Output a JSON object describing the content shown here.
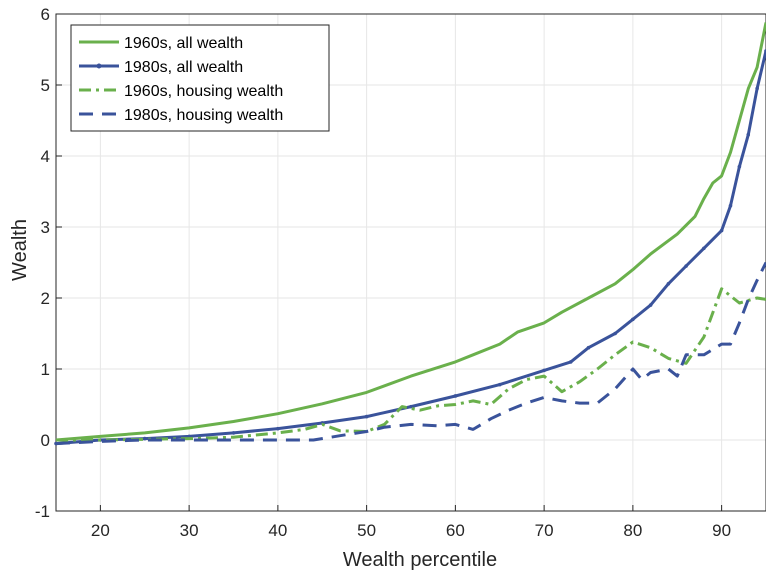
{
  "chart_data": {
    "type": "line",
    "xlabel": "Wealth percentile",
    "ylabel": "Wealth",
    "xlim": [
      15,
      95
    ],
    "ylim": [
      -1,
      6
    ],
    "xticks": [
      20,
      30,
      40,
      50,
      60,
      70,
      80,
      90
    ],
    "yticks": [
      -1,
      0,
      1,
      2,
      3,
      4,
      5,
      6
    ],
    "grid": true,
    "legend_position": "top-left",
    "series": [
      {
        "name": "1960s, all wealth",
        "color": "#6ab04c",
        "style": "solid",
        "marker": "none",
        "x": [
          15,
          20,
          25,
          30,
          35,
          40,
          45,
          50,
          55,
          60,
          62,
          65,
          67,
          70,
          72,
          75,
          78,
          80,
          82,
          85,
          87,
          88,
          89,
          90,
          91,
          92,
          93,
          94,
          95
        ],
        "y": [
          0.0,
          0.05,
          0.1,
          0.17,
          0.26,
          0.37,
          0.51,
          0.67,
          0.9,
          1.1,
          1.2,
          1.35,
          1.52,
          1.65,
          1.8,
          2.0,
          2.2,
          2.4,
          2.62,
          2.9,
          3.15,
          3.4,
          3.62,
          3.72,
          4.05,
          4.5,
          4.95,
          5.25,
          5.88
        ]
      },
      {
        "name": "1980s, all wealth",
        "color": "#3a539b",
        "style": "solid",
        "marker": "dot",
        "x": [
          15,
          20,
          25,
          30,
          35,
          40,
          45,
          50,
          55,
          60,
          65,
          70,
          73,
          75,
          78,
          80,
          82,
          84,
          86,
          88,
          90,
          91,
          92,
          93,
          94,
          95
        ],
        "y": [
          -0.05,
          0.0,
          0.02,
          0.05,
          0.1,
          0.16,
          0.24,
          0.33,
          0.47,
          0.62,
          0.78,
          0.98,
          1.1,
          1.3,
          1.5,
          1.7,
          1.9,
          2.2,
          2.45,
          2.7,
          2.95,
          3.3,
          3.85,
          4.3,
          4.95,
          5.48
        ]
      },
      {
        "name": "1960s, housing wealth",
        "color": "#6ab04c",
        "style": "dashdot",
        "marker": "none",
        "x": [
          15,
          20,
          25,
          30,
          35,
          40,
          43,
          45,
          47,
          50,
          52,
          54,
          56,
          58,
          60,
          62,
          64,
          66,
          68,
          70,
          72,
          74,
          76,
          78,
          80,
          82,
          84,
          86,
          88,
          90,
          92,
          94,
          95
        ],
        "y": [
          0.0,
          0.0,
          0.01,
          0.02,
          0.04,
          0.1,
          0.15,
          0.22,
          0.13,
          0.12,
          0.22,
          0.47,
          0.42,
          0.48,
          0.5,
          0.55,
          0.5,
          0.72,
          0.85,
          0.9,
          0.68,
          0.82,
          1.0,
          1.2,
          1.38,
          1.3,
          1.15,
          1.08,
          1.45,
          2.13,
          1.93,
          2.0,
          1.98
        ]
      },
      {
        "name": "1980s, housing wealth",
        "color": "#3a539b",
        "style": "dashed",
        "marker": "none",
        "x": [
          15,
          20,
          25,
          30,
          35,
          40,
          44,
          47,
          50,
          52,
          55,
          58,
          60,
          62,
          64,
          66,
          68,
          70,
          72,
          74,
          76,
          78,
          80,
          81,
          82,
          84,
          85,
          86,
          88,
          90,
          91,
          92,
          93,
          94,
          95
        ],
        "y": [
          -0.05,
          -0.02,
          0.0,
          0.0,
          0.0,
          0.0,
          0.0,
          0.06,
          0.12,
          0.18,
          0.22,
          0.2,
          0.22,
          0.15,
          0.3,
          0.42,
          0.52,
          0.6,
          0.55,
          0.52,
          0.52,
          0.72,
          1.0,
          0.85,
          0.95,
          1.0,
          0.9,
          1.2,
          1.2,
          1.35,
          1.35,
          1.65,
          1.98,
          2.25,
          2.5
        ]
      }
    ]
  }
}
